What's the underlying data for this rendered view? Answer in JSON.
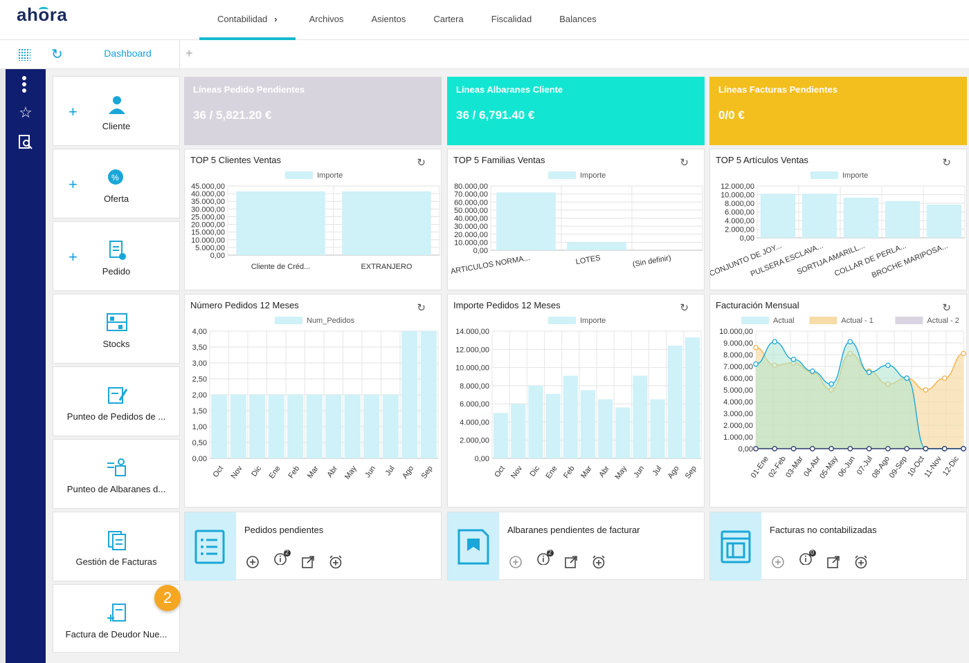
{
  "app": {
    "logo": "ahora"
  },
  "nav": {
    "items": [
      "Contabilidad",
      "Archivos",
      "Asientos",
      "Cartera",
      "Fiscalidad",
      "Balances"
    ],
    "chevron": "›"
  },
  "tabs": {
    "dashboard": "Dashboard",
    "add": "+"
  },
  "tiles": [
    {
      "label": "Cliente",
      "icon": "client-icon",
      "plus": "+"
    },
    {
      "label": "Oferta",
      "icon": "offer-icon",
      "plus": "+"
    },
    {
      "label": "Pedido",
      "icon": "order-icon",
      "plus": "+"
    },
    {
      "label": "Stocks",
      "icon": "stocks-icon"
    },
    {
      "label": "Punteo de Pedidos de ...",
      "icon": "check-orders-icon"
    },
    {
      "label": "Punteo de Albaranes d...",
      "icon": "check-delivery-icon"
    },
    {
      "label": "Gestión de Facturas",
      "icon": "invoices-icon"
    },
    {
      "label": "Factura de Deudor Nue...",
      "icon": "debtor-invoice-icon"
    }
  ],
  "kpis": [
    {
      "title": "Líneas Pedido Pendientes",
      "value": "36 / 5,821.20 €",
      "color": "#d8d4de"
    },
    {
      "title": "Líneas Albaranes Cliente",
      "value": "36 / 6,791.40 €",
      "color": "#12e6d2"
    },
    {
      "title": "Líneas Facturas Pendientes",
      "value": "0/0 €",
      "color": "#f2bf1e"
    }
  ],
  "chart_data": [
    {
      "type": "bar",
      "title": "TOP 5 Clientes Ventas",
      "legend": [
        "Importe"
      ],
      "categories": [
        "Cliente de Créd...",
        "EXTRANJERO"
      ],
      "values": [
        41500,
        41500
      ],
      "ylim": [
        0,
        45000
      ],
      "ytick_labels": [
        "45.000,00",
        "40.000,00",
        "35.000,00",
        "30.000,00",
        "25.000,00",
        "20.000,00",
        "15.000,00",
        "10.000,00",
        "5.000,00",
        "0,00"
      ]
    },
    {
      "type": "bar",
      "title": "TOP 5 Familias Ventas",
      "legend": [
        "Importe"
      ],
      "categories": [
        "ARTICULOS NORMA...",
        "LOTES",
        "(Sin definir)"
      ],
      "values": [
        72000,
        10000,
        0
      ],
      "ylim": [
        0,
        80000
      ],
      "ytick_labels": [
        "80.000,00",
        "70.000,00",
        "60.000,00",
        "50.000,00",
        "40.000,00",
        "30.000,00",
        "20.000,00",
        "10.000,00",
        "0,00"
      ]
    },
    {
      "type": "bar",
      "title": "TOP 5 Artículos Ventas",
      "legend": [
        "Importe"
      ],
      "categories": [
        "CONJUNTO DE JOY...",
        "PULSERA ESCLAVA...",
        "SORTIJA AMARILL...",
        "COLLAR DE PERLA...",
        "BROCHE MARIPOSA..."
      ],
      "values": [
        10200,
        10200,
        9300,
        8500,
        7700
      ],
      "ylim": [
        0,
        12000
      ],
      "ytick_labels": [
        "12.000,00",
        "10.000,00",
        "8.000,00",
        "6.000,00",
        "4.000,00",
        "2.000,00",
        "0,00"
      ]
    },
    {
      "type": "bar",
      "title": "Número Pedidos 12 Meses",
      "legend": [
        "Num_Pedidos"
      ],
      "categories": [
        "Oct",
        "Nov",
        "Dic",
        "Ene",
        "Feb",
        "Mar",
        "Abr",
        "May",
        "Jun",
        "Jul",
        "Ago",
        "Sep"
      ],
      "values": [
        2,
        2,
        2,
        2,
        2,
        2,
        2,
        2,
        2,
        2,
        4,
        4
      ],
      "ylim": [
        0,
        4
      ],
      "ytick_labels": [
        "4,00",
        "3,50",
        "3,00",
        "2,50",
        "2,00",
        "1,50",
        "1,00",
        "0,50",
        "0,00"
      ]
    },
    {
      "type": "bar",
      "title": "Importe Pedidos 12 Meses",
      "legend": [
        "Importe"
      ],
      "categories": [
        "Oct",
        "Nov",
        "Dic",
        "Ene",
        "Feb",
        "Mar",
        "Abr",
        "May",
        "Jun",
        "Jul",
        "Ago",
        "Sep"
      ],
      "values": [
        5000,
        6000,
        8000,
        7100,
        9100,
        7500,
        6500,
        5600,
        9100,
        6500,
        12400,
        13300
      ],
      "ylim": [
        0,
        14000
      ],
      "ytick_labels": [
        "14.000,00",
        "12.000,00",
        "10.000,00",
        "8.000,00",
        "6.000,00",
        "4.000,00",
        "2.000,00",
        "0,00"
      ]
    },
    {
      "type": "area",
      "title": "Facturación Mensual",
      "legend": [
        "Actual",
        "Actual - 1",
        "Actual - 2"
      ],
      "categories": [
        "01-Ene",
        "02-Feb",
        "03-Mar",
        "04-Abr",
        "05-May",
        "06-Jun",
        "07-Jul",
        "08-Ago",
        "09-Sep",
        "10-Oct",
        "11-Nov",
        "12-Dic"
      ],
      "series": [
        {
          "name": "Actual",
          "values": [
            7200,
            9100,
            7600,
            6600,
            5500,
            9100,
            6500,
            7100,
            6000,
            0,
            0,
            0
          ]
        },
        {
          "name": "Actual - 1",
          "values": [
            8600,
            7100,
            7300,
            6500,
            5000,
            8100,
            6600,
            5500,
            6000,
            5000,
            6000,
            8100
          ]
        },
        {
          "name": "Actual - 2",
          "values": [
            0,
            0,
            0,
            0,
            0,
            0,
            0,
            0,
            0,
            0,
            0,
            0
          ]
        }
      ],
      "ylim": [
        0,
        10000
      ],
      "ytick_labels": [
        "10.000,00",
        "9.000,00",
        "8.000,00",
        "7.000,00",
        "6.000,00",
        "5.000,00",
        "4.000,00",
        "3.000,00",
        "2.000,00",
        "1.000,00",
        "0,00"
      ]
    }
  ],
  "tasks": [
    {
      "title": "Pedidos pendientes",
      "badge": "2"
    },
    {
      "title": "Albaranes pendientes de facturar",
      "badge": "2"
    },
    {
      "title": "Facturas no contabilizadas",
      "badge": "0"
    }
  ],
  "step_badge": "2",
  "colors": {
    "accent": "#16b9cf",
    "sidebar": "#0f1e6e",
    "bar": "#cff1f8",
    "orange": "#f7dca7",
    "badge": "#f5a623"
  }
}
